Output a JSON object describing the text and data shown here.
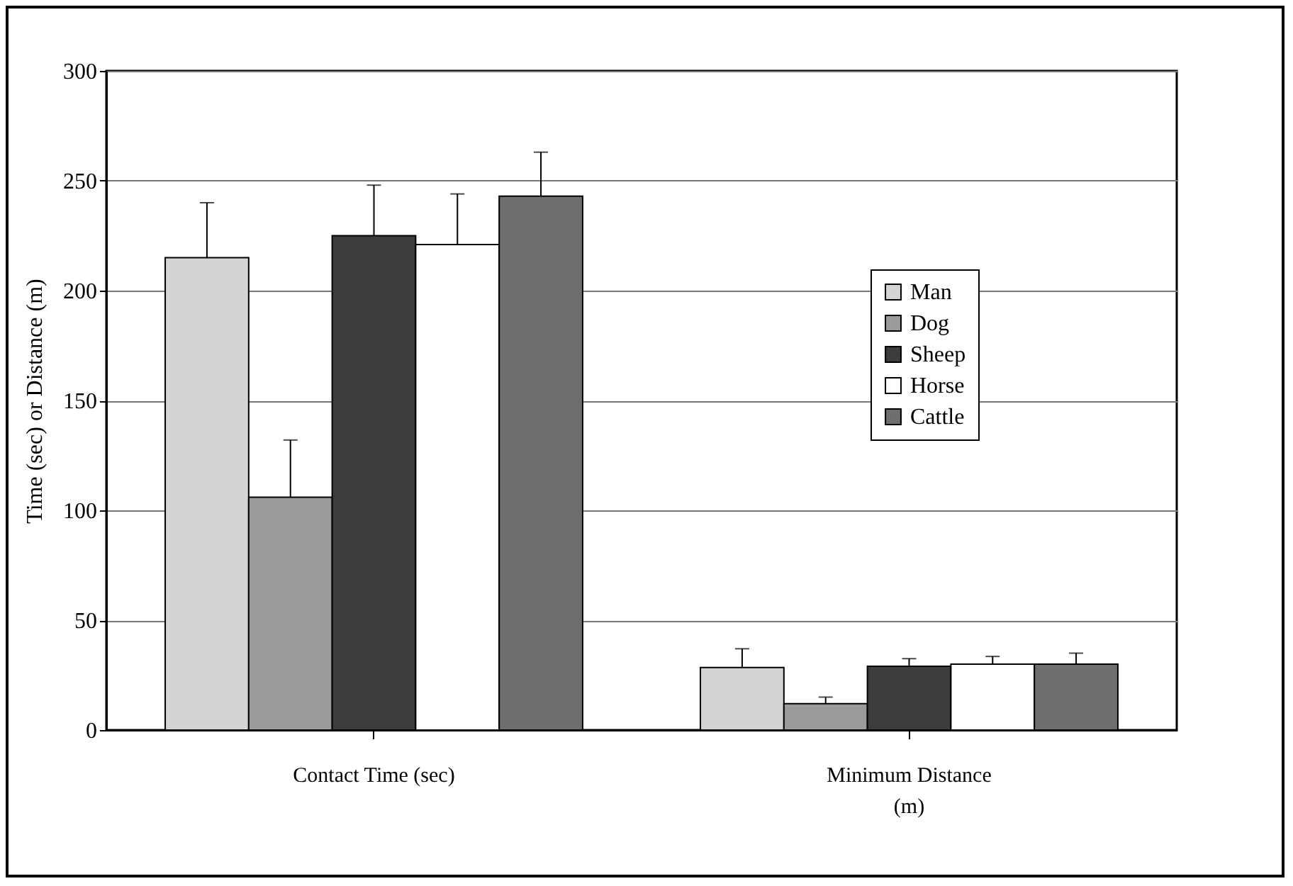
{
  "chart_data": {
    "type": "bar",
    "ylabel": "Time (sec) or Distance (m)",
    "categories": [
      "Contact Time (sec)",
      "Minimum Distance\n(m)"
    ],
    "series": [
      {
        "name": "Man",
        "color": "#d4d4d4",
        "values": [
          215,
          28.5
        ],
        "errors": [
          [
            215,
            240
          ],
          [
            28.5,
            37
          ]
        ]
      },
      {
        "name": "Dog",
        "color": "#9a9a9a",
        "values": [
          106,
          12
        ],
        "errors": [
          [
            106,
            132
          ],
          [
            12,
            15
          ]
        ]
      },
      {
        "name": "Sheep",
        "color": "#3c3c3c",
        "values": [
          225,
          29
        ],
        "errors": [
          [
            225,
            248
          ],
          [
            29,
            32.5
          ]
        ]
      },
      {
        "name": "Horse",
        "color": "#ffffff",
        "values": [
          221,
          30
        ],
        "errors": [
          [
            221,
            244
          ],
          [
            30,
            33.5
          ]
        ]
      },
      {
        "name": "Cattle",
        "color": "#6e6e6e",
        "values": [
          243,
          30
        ],
        "errors": [
          [
            243,
            263
          ],
          [
            30,
            35
          ]
        ]
      }
    ],
    "ylim": [
      0,
      300
    ],
    "yticks": [
      0,
      50,
      100,
      150,
      200,
      250,
      300
    ],
    "grid": "y",
    "legend": "top right"
  }
}
